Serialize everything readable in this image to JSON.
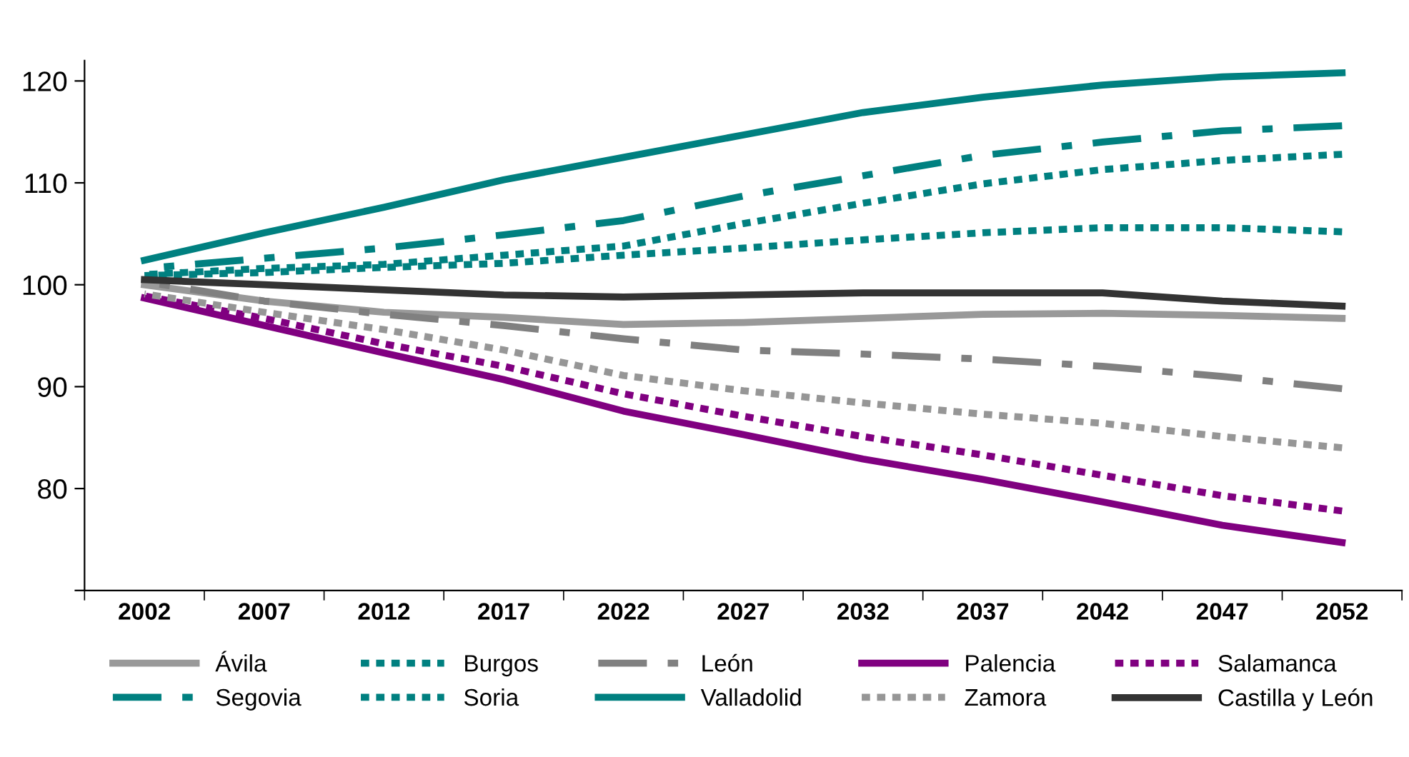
{
  "chart_data": {
    "type": "line",
    "categories": [
      "2002",
      "2007",
      "2012",
      "2017",
      "2022",
      "2027",
      "2032",
      "2037",
      "2042",
      "2047",
      "2052"
    ],
    "series": [
      {
        "name": "Ávila",
        "color": "#999999",
        "line_style": "solid",
        "values": [
          100.0,
          98.4,
          97.3,
          96.8,
          96.1,
          96.3,
          96.7,
          97.1,
          97.2,
          97.0,
          96.7
        ]
      },
      {
        "name": "Burgos",
        "color": "#008080",
        "line_style": "dotted",
        "values": [
          100.9,
          101.2,
          101.7,
          102.1,
          102.9,
          103.6,
          104.4,
          105.1,
          105.6,
          105.6,
          105.2
        ]
      },
      {
        "name": "León",
        "color": "#808080",
        "line_style": "dashed",
        "values": [
          100.3,
          98.4,
          97.1,
          96.0,
          94.7,
          93.6,
          93.2,
          92.7,
          92.0,
          91.0,
          89.8
        ]
      },
      {
        "name": "Palencia",
        "color": "#800080",
        "line_style": "solid",
        "values": [
          98.7,
          96.0,
          93.3,
          90.7,
          87.6,
          85.3,
          82.9,
          80.9,
          78.7,
          76.4,
          74.7
        ]
      },
      {
        "name": "Salamanca",
        "color": "#800080",
        "line_style": "dotted",
        "values": [
          98.9,
          96.7,
          94.2,
          92.0,
          89.3,
          87.1,
          85.1,
          83.3,
          81.3,
          79.3,
          77.8
        ]
      },
      {
        "name": "Segovia",
        "color": "#008080",
        "line_style": "dashed",
        "values": [
          101.6,
          102.6,
          103.6,
          104.9,
          106.3,
          108.7,
          110.7,
          112.7,
          114.0,
          115.1,
          115.6
        ]
      },
      {
        "name": "Soria",
        "color": "#008080",
        "line_style": "dotted",
        "values": [
          101.0,
          101.6,
          102.0,
          102.9,
          103.8,
          106.0,
          108.0,
          109.9,
          111.3,
          112.2,
          112.8
        ]
      },
      {
        "name": "Valladolid",
        "color": "#008080",
        "line_style": "solid",
        "values": [
          102.4,
          105.1,
          107.6,
          110.3,
          112.5,
          114.7,
          116.9,
          118.4,
          119.6,
          120.4,
          120.8
        ]
      },
      {
        "name": "Zamora",
        "color": "#969696",
        "line_style": "dotted",
        "values": [
          99.1,
          97.3,
          95.6,
          93.6,
          91.1,
          89.6,
          88.4,
          87.3,
          86.4,
          85.1,
          84.0
        ]
      },
      {
        "name": "Castilla y León",
        "color": "#333333",
        "line_style": "solid",
        "values": [
          100.5,
          100.0,
          99.5,
          99.0,
          98.8,
          99.0,
          99.2,
          99.2,
          99.2,
          98.4,
          97.9
        ]
      }
    ],
    "ylim": [
      70,
      122
    ],
    "yticks": [
      {
        "value": 70,
        "label": null
      },
      80,
      90,
      100,
      110,
      120
    ],
    "grid": false,
    "legend": "bottom",
    "marker": "none"
  }
}
